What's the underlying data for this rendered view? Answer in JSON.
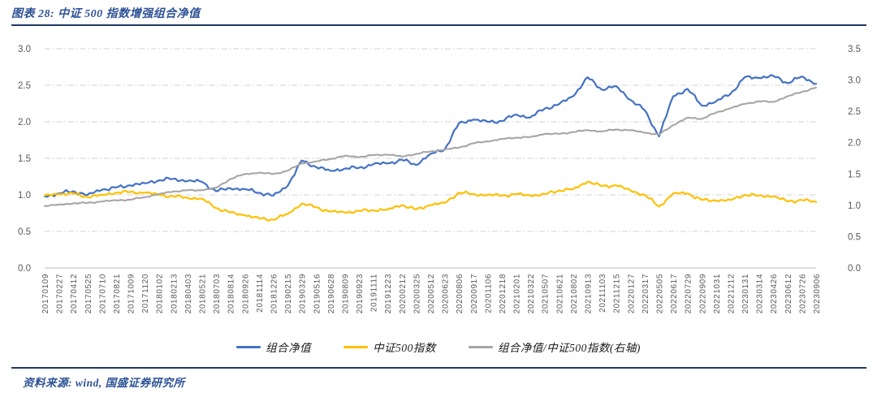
{
  "header": {
    "title": "图表 28: 中证 500 指数增强组合净值"
  },
  "footer": {
    "source": "资料来源: wind, 国盛证券研究所"
  },
  "colors": {
    "accent_navy": "#1f3864",
    "title_blue": "#2e5396",
    "series_blue": "#4472C4",
    "series_yellow": "#FFC000",
    "series_gray": "#A6A6A6",
    "grid": "#d2d2d2",
    "axis_text": "#595959"
  },
  "chart_data": {
    "type": "line",
    "grid": "horizontal-dash-dot",
    "legend_position": "bottom",
    "categories": [
      "20170109",
      "20170227",
      "20170412",
      "20170525",
      "20170710",
      "20170821",
      "20171009",
      "20171120",
      "20180102",
      "20180213",
      "20180403",
      "20180521",
      "20180703",
      "20180814",
      "20180926",
      "20181114",
      "20181226",
      "20190215",
      "20190329",
      "20190516",
      "20190628",
      "20190809",
      "20190923",
      "20191111",
      "20191223",
      "20200212",
      "20200325",
      "20200512",
      "20200623",
      "20200806",
      "20200917",
      "20201106",
      "20201218",
      "20210201",
      "20210322",
      "20210507",
      "20210621",
      "20210802",
      "20210913",
      "20211103",
      "20211215",
      "20220127",
      "20220317",
      "20220505",
      "20220617",
      "20220729",
      "20220909",
      "20221031",
      "20221212",
      "20230131",
      "20230314",
      "20230426",
      "20230612",
      "20230726",
      "20230906"
    ],
    "left_axis": {
      "min": 0.0,
      "max": 3.0,
      "step": 0.5,
      "ticks": [
        "0.0",
        "0.5",
        "1.0",
        "1.5",
        "2.0",
        "2.5",
        "3.0"
      ]
    },
    "right_axis": {
      "min": 0.0,
      "max": 3.5,
      "step": 0.5,
      "ticks": [
        "0.0",
        "0.5",
        "1.0",
        "1.5",
        "2.0",
        "2.5",
        "3.0",
        "3.5"
      ]
    },
    "series": [
      {
        "name": "组合净值",
        "axis": "left",
        "color": "#4472C4",
        "values": [
          0.98,
          1.02,
          1.05,
          1.0,
          1.07,
          1.1,
          1.13,
          1.16,
          1.2,
          1.22,
          1.19,
          1.18,
          1.05,
          1.09,
          1.08,
          1.03,
          0.99,
          1.12,
          1.47,
          1.38,
          1.33,
          1.36,
          1.37,
          1.42,
          1.43,
          1.48,
          1.41,
          1.56,
          1.62,
          1.98,
          2.03,
          2.0,
          2.01,
          2.1,
          2.06,
          2.18,
          2.24,
          2.35,
          2.61,
          2.44,
          2.49,
          2.3,
          2.16,
          1.8,
          2.35,
          2.45,
          2.22,
          2.28,
          2.38,
          2.61,
          2.6,
          2.63,
          2.53,
          2.62,
          2.52
        ]
      },
      {
        "name": "中证500指数",
        "axis": "left",
        "color": "#FFC000",
        "values": [
          0.99,
          1.01,
          1.02,
          0.97,
          1.0,
          1.03,
          1.04,
          1.03,
          1.0,
          0.98,
          0.96,
          0.95,
          0.82,
          0.76,
          0.72,
          0.68,
          0.66,
          0.74,
          0.88,
          0.83,
          0.77,
          0.76,
          0.78,
          0.79,
          0.8,
          0.86,
          0.8,
          0.86,
          0.89,
          1.03,
          1.01,
          1.0,
          0.99,
          1.01,
          0.99,
          1.01,
          1.06,
          1.08,
          1.18,
          1.12,
          1.13,
          1.06,
          1.0,
          0.84,
          1.02,
          1.02,
          0.93,
          0.92,
          0.93,
          1.0,
          0.99,
          0.98,
          0.91,
          0.93,
          0.9
        ]
      },
      {
        "name": "组合净值/中证500指数(右轴)",
        "axis": "right",
        "color": "#A6A6A6",
        "values": [
          0.99,
          1.01,
          1.03,
          1.04,
          1.06,
          1.08,
          1.09,
          1.13,
          1.18,
          1.22,
          1.24,
          1.24,
          1.28,
          1.42,
          1.5,
          1.52,
          1.5,
          1.55,
          1.67,
          1.7,
          1.74,
          1.79,
          1.77,
          1.8,
          1.81,
          1.78,
          1.82,
          1.86,
          1.89,
          1.92,
          1.99,
          2.02,
          2.06,
          2.08,
          2.09,
          2.14,
          2.14,
          2.17,
          2.2,
          2.18,
          2.21,
          2.2,
          2.16,
          2.13,
          2.28,
          2.4,
          2.38,
          2.48,
          2.55,
          2.62,
          2.66,
          2.65,
          2.74,
          2.81,
          2.88
        ]
      }
    ]
  }
}
